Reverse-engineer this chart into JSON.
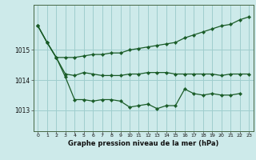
{
  "title": "Graphe pression niveau de la mer (hPa)",
  "background_color": "#cdeaea",
  "grid_color": "#9fcece",
  "line_color": "#1a5c28",
  "xlim": [
    -0.5,
    23.5
  ],
  "ylim": [
    1012.3,
    1016.5
  ],
  "yticks": [
    1013,
    1014,
    1015
  ],
  "xticks": [
    0,
    1,
    2,
    3,
    4,
    5,
    6,
    7,
    8,
    9,
    10,
    11,
    12,
    13,
    14,
    15,
    16,
    17,
    18,
    19,
    20,
    21,
    22,
    23
  ],
  "line1_x": [
    0,
    1,
    2,
    3,
    4,
    5,
    6,
    7,
    8,
    9,
    10,
    11,
    12,
    13,
    14,
    15,
    16,
    17,
    18,
    19,
    20,
    21,
    22,
    23
  ],
  "line1_y": [
    1015.8,
    1015.25,
    1014.75,
    1014.75,
    1014.75,
    1014.8,
    1014.85,
    1014.85,
    1014.9,
    1014.9,
    1015.0,
    1015.05,
    1015.1,
    1015.15,
    1015.2,
    1015.25,
    1015.4,
    1015.5,
    1015.6,
    1015.7,
    1015.8,
    1015.85,
    1016.0,
    1016.1
  ],
  "line2_x": [
    0,
    1,
    2,
    3,
    4,
    5,
    6,
    7,
    8,
    9,
    10,
    11,
    12,
    13,
    14,
    15,
    16,
    17,
    18,
    19,
    20,
    21,
    22,
    23
  ],
  "line2_y": [
    1015.8,
    1015.25,
    1014.75,
    1014.2,
    1014.15,
    1014.25,
    1014.2,
    1014.15,
    1014.15,
    1014.15,
    1014.2,
    1014.2,
    1014.25,
    1014.25,
    1014.25,
    1014.2,
    1014.2,
    1014.2,
    1014.2,
    1014.2,
    1014.15,
    1014.2,
    1014.2,
    1014.2
  ],
  "line3_x": [
    0,
    1,
    2,
    3,
    4,
    5,
    6,
    7,
    8,
    9,
    10,
    11,
    12,
    13,
    14,
    15,
    16,
    17,
    18,
    19,
    20,
    21,
    22,
    23
  ],
  "line3_y": [
    1015.8,
    1015.25,
    1014.75,
    1014.1,
    1013.35,
    1013.35,
    1013.3,
    1013.35,
    1013.35,
    1013.3,
    1013.1,
    1013.15,
    1013.2,
    1013.05,
    1013.15,
    1013.15,
    1013.7,
    1013.55,
    1013.5,
    1013.55,
    1013.5,
    1013.5,
    1013.55,
    null
  ]
}
